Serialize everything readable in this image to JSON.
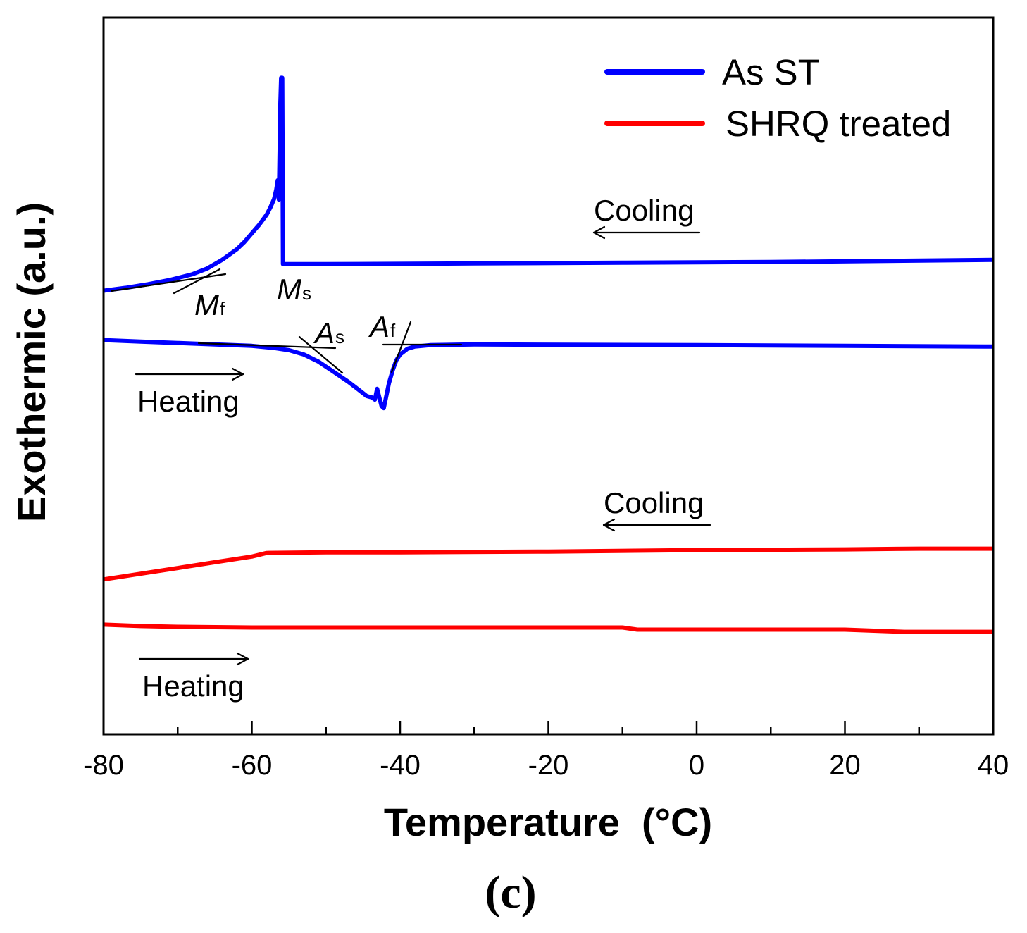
{
  "chart_data": {
    "type": "line",
    "title": "",
    "xlabel": "Temperature  (°C)",
    "ylabel": "Exothermic (a.u.)",
    "xlim": [
      -80,
      40
    ],
    "ylim": [
      0,
      100
    ],
    "xticks": [
      -80,
      -60,
      -40,
      -20,
      0,
      20,
      40
    ],
    "xtick_labels": [
      "-80",
      "-60",
      "-40",
      "-20",
      "0",
      "20",
      "40"
    ],
    "xticks_minor": [
      -70,
      -50,
      -30,
      -10,
      10,
      30
    ],
    "grid": false,
    "legend": {
      "position": "top-right"
    },
    "series": [
      {
        "name": "As ST",
        "color": "#0000FF",
        "curves": [
          {
            "label": "Cooling",
            "points": [
              [
                -80,
                61.9
              ],
              [
                -77,
                62.3
              ],
              [
                -74,
                62.8
              ],
              [
                -71,
                63.4
              ],
              [
                -68,
                64.2
              ],
              [
                -66,
                65.0
              ],
              [
                -64,
                66.2
              ],
              [
                -62,
                67.7
              ],
              [
                -61,
                68.7
              ],
              [
                -60,
                69.9
              ],
              [
                -59,
                71.1
              ],
              [
                -58,
                72.5
              ],
              [
                -57.5,
                73.5
              ],
              [
                -57,
                74.7
              ],
              [
                -56.7,
                76.0
              ],
              [
                -56.5,
                77.3
              ],
              [
                -56.35,
                74.6
              ],
              [
                -56.15,
                88.0
              ],
              [
                -56.05,
                91.6
              ],
              [
                -55.9,
                91.6
              ],
              [
                -55.8,
                65.6
              ],
              [
                -50,
                65.6
              ],
              [
                -30,
                65.7
              ],
              [
                -10,
                65.8
              ],
              [
                10,
                65.9
              ],
              [
                40,
                66.2
              ]
            ]
          },
          {
            "label": "Heating",
            "points": [
              [
                -80,
                55.0
              ],
              [
                -75,
                54.8
              ],
              [
                -70,
                54.6
              ],
              [
                -65,
                54.4
              ],
              [
                -60,
                54.2
              ],
              [
                -57,
                53.9
              ],
              [
                -55,
                53.6
              ],
              [
                -53,
                53.0
              ],
              [
                -51,
                52.0
              ],
              [
                -49,
                50.6
              ],
              [
                -47,
                49.2
              ],
              [
                -45.5,
                48.0
              ],
              [
                -44.5,
                47.2
              ],
              [
                -43.8,
                47.0
              ],
              [
                -43.4,
                46.7
              ],
              [
                -43.1,
                48.2
              ],
              [
                -42.8,
                47.0
              ],
              [
                -42.5,
                45.8
              ],
              [
                -42.2,
                45.5
              ],
              [
                -41.9,
                47.0
              ],
              [
                -41.5,
                49.0
              ],
              [
                -41,
                50.8
              ],
              [
                -40.5,
                52.2
              ],
              [
                -40,
                53.0
              ],
              [
                -39,
                53.8
              ],
              [
                -38,
                54.1
              ],
              [
                -36,
                54.3
              ],
              [
                -30,
                54.4
              ],
              [
                0,
                54.3
              ],
              [
                20,
                54.2
              ],
              [
                40,
                54.1
              ]
            ]
          }
        ]
      },
      {
        "name": "SHRQ treated",
        "color": "#FF0000",
        "curves": [
          {
            "label": "Cooling",
            "points": [
              [
                -80,
                21.6
              ],
              [
                -75,
                22.4
              ],
              [
                -70,
                23.2
              ],
              [
                -65,
                24.0
              ],
              [
                -60,
                24.8
              ],
              [
                -58,
                25.3
              ],
              [
                -50,
                25.4
              ],
              [
                -40,
                25.4
              ],
              [
                -20,
                25.5
              ],
              [
                0,
                25.7
              ],
              [
                20,
                25.8
              ],
              [
                30,
                25.9
              ],
              [
                40,
                25.9
              ]
            ]
          },
          {
            "label": "Heating",
            "points": [
              [
                -80,
                15.3
              ],
              [
                -75,
                15.1
              ],
              [
                -70,
                15.0
              ],
              [
                -60,
                14.9
              ],
              [
                -10,
                14.9
              ],
              [
                -8,
                14.6
              ],
              [
                20,
                14.6
              ],
              [
                28,
                14.3
              ],
              [
                40,
                14.3
              ]
            ]
          }
        ]
      }
    ],
    "transitions": [
      {
        "symbol": "M",
        "sub": "f"
      },
      {
        "symbol": "M",
        "sub": "s"
      },
      {
        "symbol": "A",
        "sub": "s"
      },
      {
        "symbol": "A",
        "sub": "f"
      }
    ]
  },
  "figure": {
    "panel_label": "(c)"
  }
}
